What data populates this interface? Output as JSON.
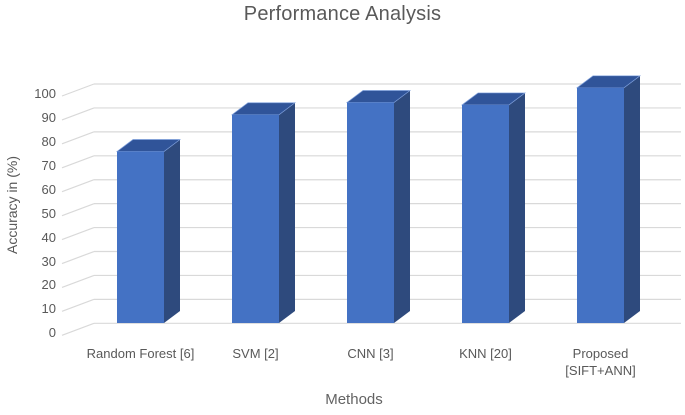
{
  "title": "Performance Analysis",
  "axes": {
    "y_title": "Accuracy in (%)",
    "x_title": "Methods"
  },
  "colors": {
    "bar_front": "#4472C4",
    "bar_top": "#305499",
    "bar_side": "#2E4A7D",
    "bar_edge_highlight": "#7FA0DC",
    "gridline": "#D9D9D9",
    "text_gray": "#595959",
    "title_gray": "#595959"
  },
  "chart_data": {
    "type": "bar",
    "style": "3d-column",
    "title": "Performance Analysis",
    "categories": [
      "Random Forest [6]",
      "SVM [2]",
      "CNN [3]",
      "KNN [20]",
      "Proposed [SIFT+ANN]"
    ],
    "values": [
      70,
      85,
      90,
      89,
      96
    ],
    "xlabel": "Methods",
    "ylabel": "Accuracy in (%)",
    "ylim": [
      0,
      100
    ],
    "ytick_step": 10,
    "ytick_labels": [
      "0",
      "10",
      "20",
      "30",
      "40",
      "50",
      "60",
      "70",
      "80",
      "90",
      "100"
    ],
    "grid": true,
    "legend": "none"
  }
}
